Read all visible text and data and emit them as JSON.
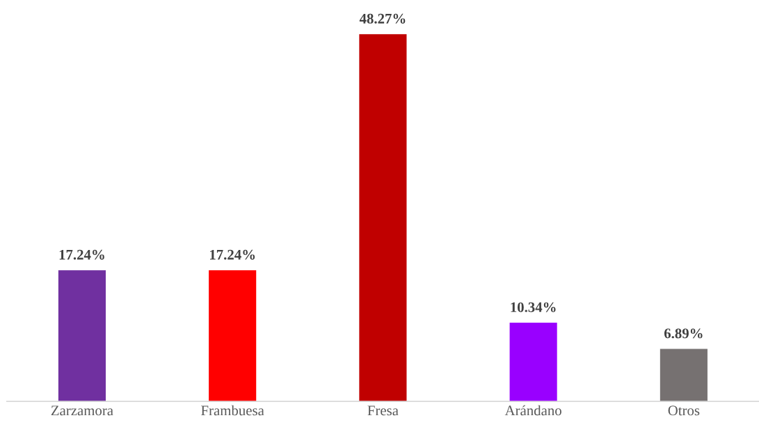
{
  "chart_data": {
    "type": "bar",
    "categories": [
      "Zarzamora",
      "Frambuesa",
      "Fresa",
      "Arándano",
      "Otros"
    ],
    "values": [
      17.24,
      17.24,
      48.27,
      10.34,
      6.89
    ],
    "colors": [
      "#7030a0",
      "#ff0000",
      "#c00000",
      "#9900ff",
      "#767171"
    ],
    "value_labels": [
      "17.24%",
      "17.24%",
      "48.27%",
      "10.34%",
      "6.89%"
    ],
    "grid": false,
    "legend": false
  }
}
